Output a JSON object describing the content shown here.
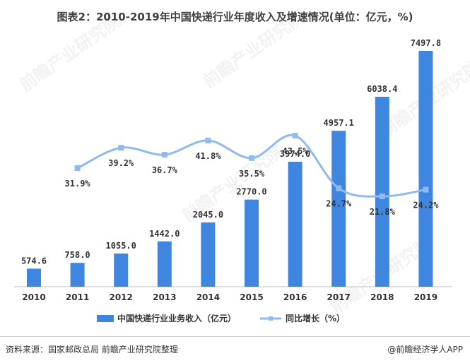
{
  "title": "图表2：2010-2019年中国快递行业年度收入及增速情况(单位：亿元，%)",
  "source": "资料来源：国家邮政总局 前瞻产业研究院整理",
  "brand": "@前瞻经济学人APP",
  "watermark": "前瞻产业研究院",
  "colors": {
    "bar": "#3f86e0",
    "line": "#8fb9ef",
    "axis": "#bfbfbf"
  },
  "chart_data": {
    "type": "bar+line",
    "categories": [
      "2010",
      "2011",
      "2012",
      "2013",
      "2014",
      "2015",
      "2016",
      "2017",
      "2018",
      "2019"
    ],
    "bar_labels": [
      "574.6",
      "758.0",
      "1055.0",
      "1442.0",
      "2045.0",
      "2770.0",
      "3974.0",
      "4957.1",
      "6038.4",
      "7497.8"
    ],
    "line_labels": [
      "",
      "31.9%",
      "39.2%",
      "36.7%",
      "41.8%",
      "35.5%",
      "43.5%",
      "24.7%",
      "21.8%",
      "24.2%"
    ],
    "series": [
      {
        "name": "中国快递行业业务收入（亿元）",
        "type": "bar",
        "values": [
          574.6,
          758.0,
          1055.0,
          1442.0,
          2045.0,
          2770.0,
          3974.0,
          4957.1,
          6038.4,
          7497.8
        ]
      },
      {
        "name": "同比增长（%）",
        "type": "line",
        "values": [
          null,
          31.9,
          39.2,
          36.7,
          41.8,
          35.5,
          43.5,
          24.7,
          21.8,
          24.2
        ]
      }
    ],
    "legend_position": "bottom",
    "grid": false
  }
}
